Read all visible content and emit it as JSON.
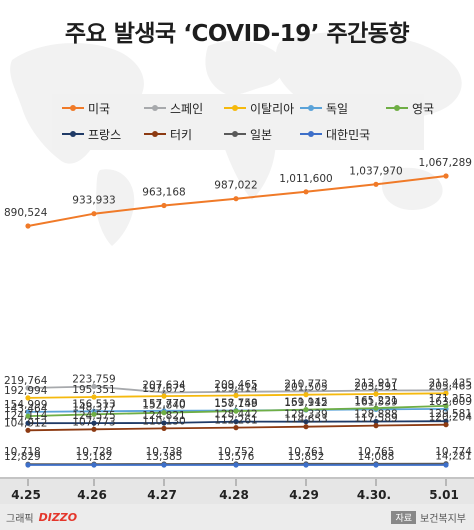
{
  "title": "주요 발생국 ‘COVID-19’ 주간동향",
  "footer": {
    "graphic_label": "그래픽",
    "brand": "DIZZO",
    "source_label": "자료",
    "source": "보건복지부"
  },
  "chart_data": {
    "type": "line",
    "categories": [
      "4.25",
      "4.26",
      "4.27",
      "4.28",
      "4.29",
      "4.30.",
      "5.01"
    ],
    "legend_position": "top",
    "grid": false,
    "series": [
      {
        "name": "미국",
        "color": "#f07a28",
        "values": [
          890524,
          933933,
          963168,
          987022,
          1011600,
          1037970,
          1067289
        ]
      },
      {
        "name": "스페인",
        "color": "#a7a9ac",
        "values": [
          219764,
          223759,
          207634,
          209465,
          210773,
          212917,
          213435
        ]
      },
      {
        "name": "이탈리아",
        "color": "#f5b90d",
        "values": [
          192994,
          195351,
          197675,
          199414,
          201505,
          203591,
          205463
        ]
      },
      {
        "name": "독일",
        "color": "#5ba3d9",
        "values": [
          154999,
          156513,
          157770,
          158758,
          159912,
          161539,
          163009
        ]
      },
      {
        "name": "영국",
        "color": "#6fae45",
        "values": [
          143464,
          148377,
          152840,
          157149,
          161145,
          165221,
          171253
        ]
      },
      {
        "name": "프랑스",
        "color": "#1f3a66",
        "values": [
          124114,
          124575,
          124821,
          128442,
          128339,
          128888,
          129581
        ]
      },
      {
        "name": "터키",
        "color": "#8c3a12",
        "values": [
          104912,
          107773,
          110130,
          112261,
          114653,
          117589,
          120204
        ]
      },
      {
        "name": "일본",
        "color": "#5a5a5a",
        "values": [
          12829,
          13182,
          13385,
          13576,
          13852,
          14088,
          14281
        ]
      },
      {
        "name": "대한민국",
        "color": "#3d6fc9",
        "values": [
          10718,
          10728,
          10738,
          10752,
          10761,
          10765,
          10774
        ]
      }
    ]
  }
}
